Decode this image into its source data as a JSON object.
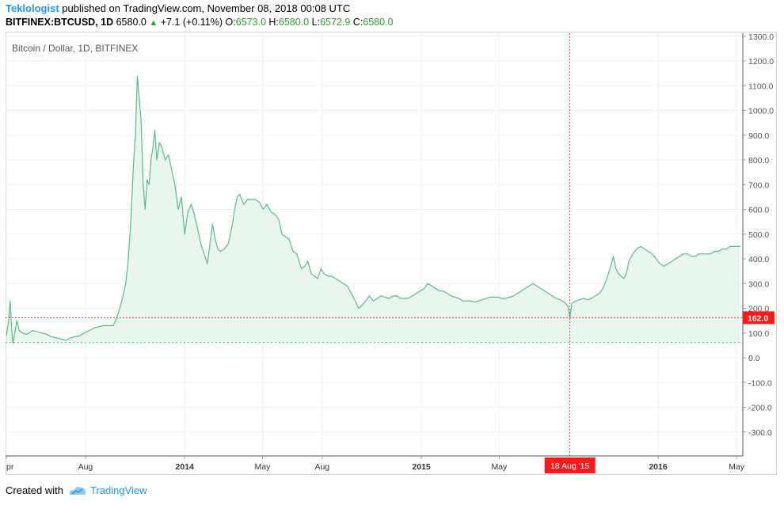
{
  "header": {
    "user": "Teklologist",
    "published": "published on TradingView.com, November 08, 2018 00:08 UTC",
    "symbol": "BITFINEX:BTCUSD, 1D",
    "last": "6580.0",
    "change": "+7.1 (+0.11%)",
    "o_label": "O:",
    "o_value": "6573.0",
    "h_label": "H:",
    "h_value": "6580.0",
    "l_label": "L:",
    "l_value": "6572.9",
    "c_label": "C:",
    "c_value": "6580.0"
  },
  "footer": {
    "created_with": "Created with",
    "brand": "TradingView"
  },
  "colors": {
    "line": "#5cb88a",
    "fill": "#e9f6ee",
    "crosshair": "#e53935",
    "badge": "#ff1a1a",
    "grid": "#eef0f3"
  },
  "chart_data": {
    "type": "area",
    "title": "Bitcoin / Dollar, 1D, BITFINEX",
    "xlabel": "",
    "ylabel": "",
    "ylim": [
      -400,
      1300
    ],
    "y_ticks": [
      1300,
      1200,
      1100,
      1000,
      900,
      800,
      700,
      600,
      500,
      400,
      300,
      200,
      100,
      0,
      -100,
      -200,
      -300
    ],
    "y_tick_labels": [
      "1300.0",
      "1200.0",
      "1100.0",
      "1000.0",
      "900.0",
      "800.0",
      "700.0",
      "600.0",
      "500.0",
      "400.0",
      "300.0",
      "200.0",
      "100.0",
      "0.0",
      "-100.0",
      "-200.0",
      "-300.0"
    ],
    "x_range_days": [
      0,
      1132
    ],
    "x_ticks": [
      {
        "label": "pr",
        "day": 0,
        "bold": false
      },
      {
        "label": "Aug",
        "day": 122,
        "bold": false
      },
      {
        "label": "2014",
        "day": 275,
        "bold": true
      },
      {
        "label": "May",
        "day": 395,
        "bold": false
      },
      {
        "label": "Aug",
        "day": 487,
        "bold": false
      },
      {
        "label": "2015",
        "day": 640,
        "bold": true
      },
      {
        "label": "May",
        "day": 760,
        "bold": false
      },
      {
        "label": "2016",
        "day": 1005,
        "bold": true
      },
      {
        "label": "May",
        "day": 1126,
        "bold": false
      }
    ],
    "crosshair": {
      "day": 869,
      "value": 162.0,
      "x_label": "18 Aug '15",
      "y_label": "162.0"
    },
    "baseline": 62,
    "series": [
      {
        "name": "BTCUSD",
        "points": [
          [
            0,
            90
          ],
          [
            3,
            140
          ],
          [
            6,
            230
          ],
          [
            8,
            120
          ],
          [
            10,
            60
          ],
          [
            13,
            100
          ],
          [
            16,
            150
          ],
          [
            20,
            110
          ],
          [
            25,
            100
          ],
          [
            32,
            95
          ],
          [
            40,
            110
          ],
          [
            48,
            105
          ],
          [
            55,
            100
          ],
          [
            62,
            95
          ],
          [
            70,
            85
          ],
          [
            78,
            80
          ],
          [
            85,
            75
          ],
          [
            92,
            70
          ],
          [
            98,
            80
          ],
          [
            105,
            85
          ],
          [
            112,
            88
          ],
          [
            120,
            100
          ],
          [
            128,
            110
          ],
          [
            135,
            120
          ],
          [
            142,
            125
          ],
          [
            150,
            130
          ],
          [
            158,
            130
          ],
          [
            165,
            130
          ],
          [
            170,
            160
          ],
          [
            175,
            200
          ],
          [
            180,
            250
          ],
          [
            184,
            300
          ],
          [
            188,
            400
          ],
          [
            192,
            550
          ],
          [
            196,
            780
          ],
          [
            199,
            900
          ],
          [
            202,
            1140
          ],
          [
            205,
            1050
          ],
          [
            208,
            950
          ],
          [
            211,
            700
          ],
          [
            214,
            600
          ],
          [
            217,
            720
          ],
          [
            220,
            700
          ],
          [
            223,
            800
          ],
          [
            226,
            850
          ],
          [
            229,
            920
          ],
          [
            232,
            800
          ],
          [
            236,
            870
          ],
          [
            240,
            850
          ],
          [
            245,
            800
          ],
          [
            250,
            820
          ],
          [
            255,
            760
          ],
          [
            260,
            700
          ],
          [
            265,
            600
          ],
          [
            270,
            650
          ],
          [
            275,
            500
          ],
          [
            280,
            590
          ],
          [
            285,
            620
          ],
          [
            290,
            580
          ],
          [
            295,
            520
          ],
          [
            300,
            460
          ],
          [
            305,
            420
          ],
          [
            310,
            380
          ],
          [
            314,
            460
          ],
          [
            318,
            540
          ],
          [
            322,
            480
          ],
          [
            326,
            440
          ],
          [
            330,
            430
          ],
          [
            336,
            440
          ],
          [
            342,
            460
          ],
          [
            348,
            530
          ],
          [
            352,
            600
          ],
          [
            356,
            650
          ],
          [
            360,
            660
          ],
          [
            366,
            620
          ],
          [
            372,
            640
          ],
          [
            378,
            640
          ],
          [
            384,
            640
          ],
          [
            390,
            630
          ],
          [
            396,
            600
          ],
          [
            402,
            620
          ],
          [
            408,
            590
          ],
          [
            414,
            580
          ],
          [
            420,
            560
          ],
          [
            425,
            500
          ],
          [
            430,
            490
          ],
          [
            436,
            480
          ],
          [
            442,
            430
          ],
          [
            448,
            420
          ],
          [
            455,
            360
          ],
          [
            460,
            370
          ],
          [
            465,
            390
          ],
          [
            470,
            340
          ],
          [
            475,
            330
          ],
          [
            480,
            320
          ],
          [
            485,
            360
          ],
          [
            490,
            340
          ],
          [
            496,
            330
          ],
          [
            502,
            330
          ],
          [
            508,
            320
          ],
          [
            514,
            310
          ],
          [
            520,
            300
          ],
          [
            526,
            290
          ],
          [
            532,
            260
          ],
          [
            538,
            230
          ],
          [
            543,
            200
          ],
          [
            548,
            210
          ],
          [
            554,
            230
          ],
          [
            560,
            250
          ],
          [
            566,
            230
          ],
          [
            572,
            240
          ],
          [
            578,
            250
          ],
          [
            584,
            245
          ],
          [
            590,
            240
          ],
          [
            596,
            250
          ],
          [
            602,
            250
          ],
          [
            608,
            240
          ],
          [
            614,
            240
          ],
          [
            620,
            240
          ],
          [
            626,
            250
          ],
          [
            632,
            260
          ],
          [
            638,
            270
          ],
          [
            644,
            280
          ],
          [
            650,
            300
          ],
          [
            656,
            290
          ],
          [
            662,
            280
          ],
          [
            668,
            270
          ],
          [
            674,
            270
          ],
          [
            680,
            260
          ],
          [
            686,
            250
          ],
          [
            692,
            245
          ],
          [
            698,
            240
          ],
          [
            704,
            230
          ],
          [
            710,
            230
          ],
          [
            716,
            230
          ],
          [
            722,
            225
          ],
          [
            728,
            230
          ],
          [
            734,
            235
          ],
          [
            740,
            240
          ],
          [
            746,
            245
          ],
          [
            752,
            245
          ],
          [
            758,
            245
          ],
          [
            764,
            240
          ],
          [
            770,
            240
          ],
          [
            776,
            245
          ],
          [
            782,
            250
          ],
          [
            788,
            260
          ],
          [
            794,
            270
          ],
          [
            800,
            280
          ],
          [
            806,
            290
          ],
          [
            812,
            300
          ],
          [
            818,
            290
          ],
          [
            824,
            280
          ],
          [
            830,
            270
          ],
          [
            836,
            260
          ],
          [
            842,
            250
          ],
          [
            848,
            240
          ],
          [
            854,
            235
          ],
          [
            860,
            225
          ],
          [
            866,
            210
          ],
          [
            869,
            162
          ],
          [
            872,
            220
          ],
          [
            878,
            230
          ],
          [
            884,
            235
          ],
          [
            890,
            240
          ],
          [
            896,
            235
          ],
          [
            902,
            240
          ],
          [
            908,
            250
          ],
          [
            914,
            260
          ],
          [
            920,
            280
          ],
          [
            926,
            320
          ],
          [
            932,
            370
          ],
          [
            936,
            410
          ],
          [
            940,
            360
          ],
          [
            944,
            340
          ],
          [
            948,
            330
          ],
          [
            952,
            320
          ],
          [
            956,
            340
          ],
          [
            960,
            390
          ],
          [
            966,
            420
          ],
          [
            972,
            440
          ],
          [
            978,
            450
          ],
          [
            984,
            440
          ],
          [
            990,
            430
          ],
          [
            996,
            420
          ],
          [
            1002,
            400
          ],
          [
            1008,
            380
          ],
          [
            1014,
            370
          ],
          [
            1020,
            380
          ],
          [
            1026,
            390
          ],
          [
            1032,
            400
          ],
          [
            1038,
            410
          ],
          [
            1044,
            420
          ],
          [
            1050,
            420
          ],
          [
            1056,
            410
          ],
          [
            1062,
            410
          ],
          [
            1068,
            420
          ],
          [
            1074,
            420
          ],
          [
            1080,
            420
          ],
          [
            1086,
            420
          ],
          [
            1092,
            430
          ],
          [
            1098,
            430
          ],
          [
            1104,
            440
          ],
          [
            1110,
            440
          ],
          [
            1116,
            450
          ],
          [
            1122,
            450
          ],
          [
            1128,
            450
          ],
          [
            1132,
            450
          ]
        ]
      }
    ]
  }
}
